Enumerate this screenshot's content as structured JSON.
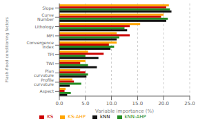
{
  "chart_data": {
    "type": "bar",
    "orientation": "horizontal",
    "categories": [
      "Slope",
      "Curve Number",
      "Lithology",
      "MFI",
      "Convergence Index",
      "TPI",
      "TWI",
      "Plan curvature",
      "Profile curvature",
      "Aspect"
    ],
    "series": [
      {
        "name": "KS-AHP",
        "color": "#FFA500",
        "values": [
          21.0,
          20.0,
          15.5,
          11.0,
          11.0,
          5.5,
          5.0,
          4.0,
          2.5,
          1.2
        ]
      },
      {
        "name": "KS",
        "color": "#CC0000",
        "values": [
          20.5,
          19.5,
          13.5,
          13.5,
          9.5,
          8.5,
          4.0,
          5.0,
          2.8,
          1.0
        ]
      },
      {
        "name": "kNN-AHP",
        "color": "#228B22",
        "values": [
          21.2,
          20.8,
          12.5,
          11.5,
          10.5,
          5.0,
          5.5,
          5.5,
          4.2,
          2.2
        ]
      },
      {
        "name": "kNN",
        "color": "#111111",
        "values": [
          21.5,
          20.5,
          13.0,
          11.0,
          9.8,
          7.5,
          7.2,
          5.2,
          2.0,
          1.5
        ]
      }
    ],
    "xlabel": "Variable importance (%)",
    "ylabel": "Flash-flood conditioning factors",
    "xlim": [
      0,
      25.0
    ],
    "xticks": [
      {
        "value": 0.0,
        "label": "0.0"
      },
      {
        "value": 5.0,
        "label": "5.0"
      },
      {
        "value": 10.0,
        "label": "10.0"
      },
      {
        "value": 15.0,
        "label": "15.0"
      },
      {
        "value": 20.0,
        "label": "20.0"
      },
      {
        "value": 25.0,
        "label": "25.0"
      }
    ],
    "grid": true,
    "legend": "bottom"
  }
}
